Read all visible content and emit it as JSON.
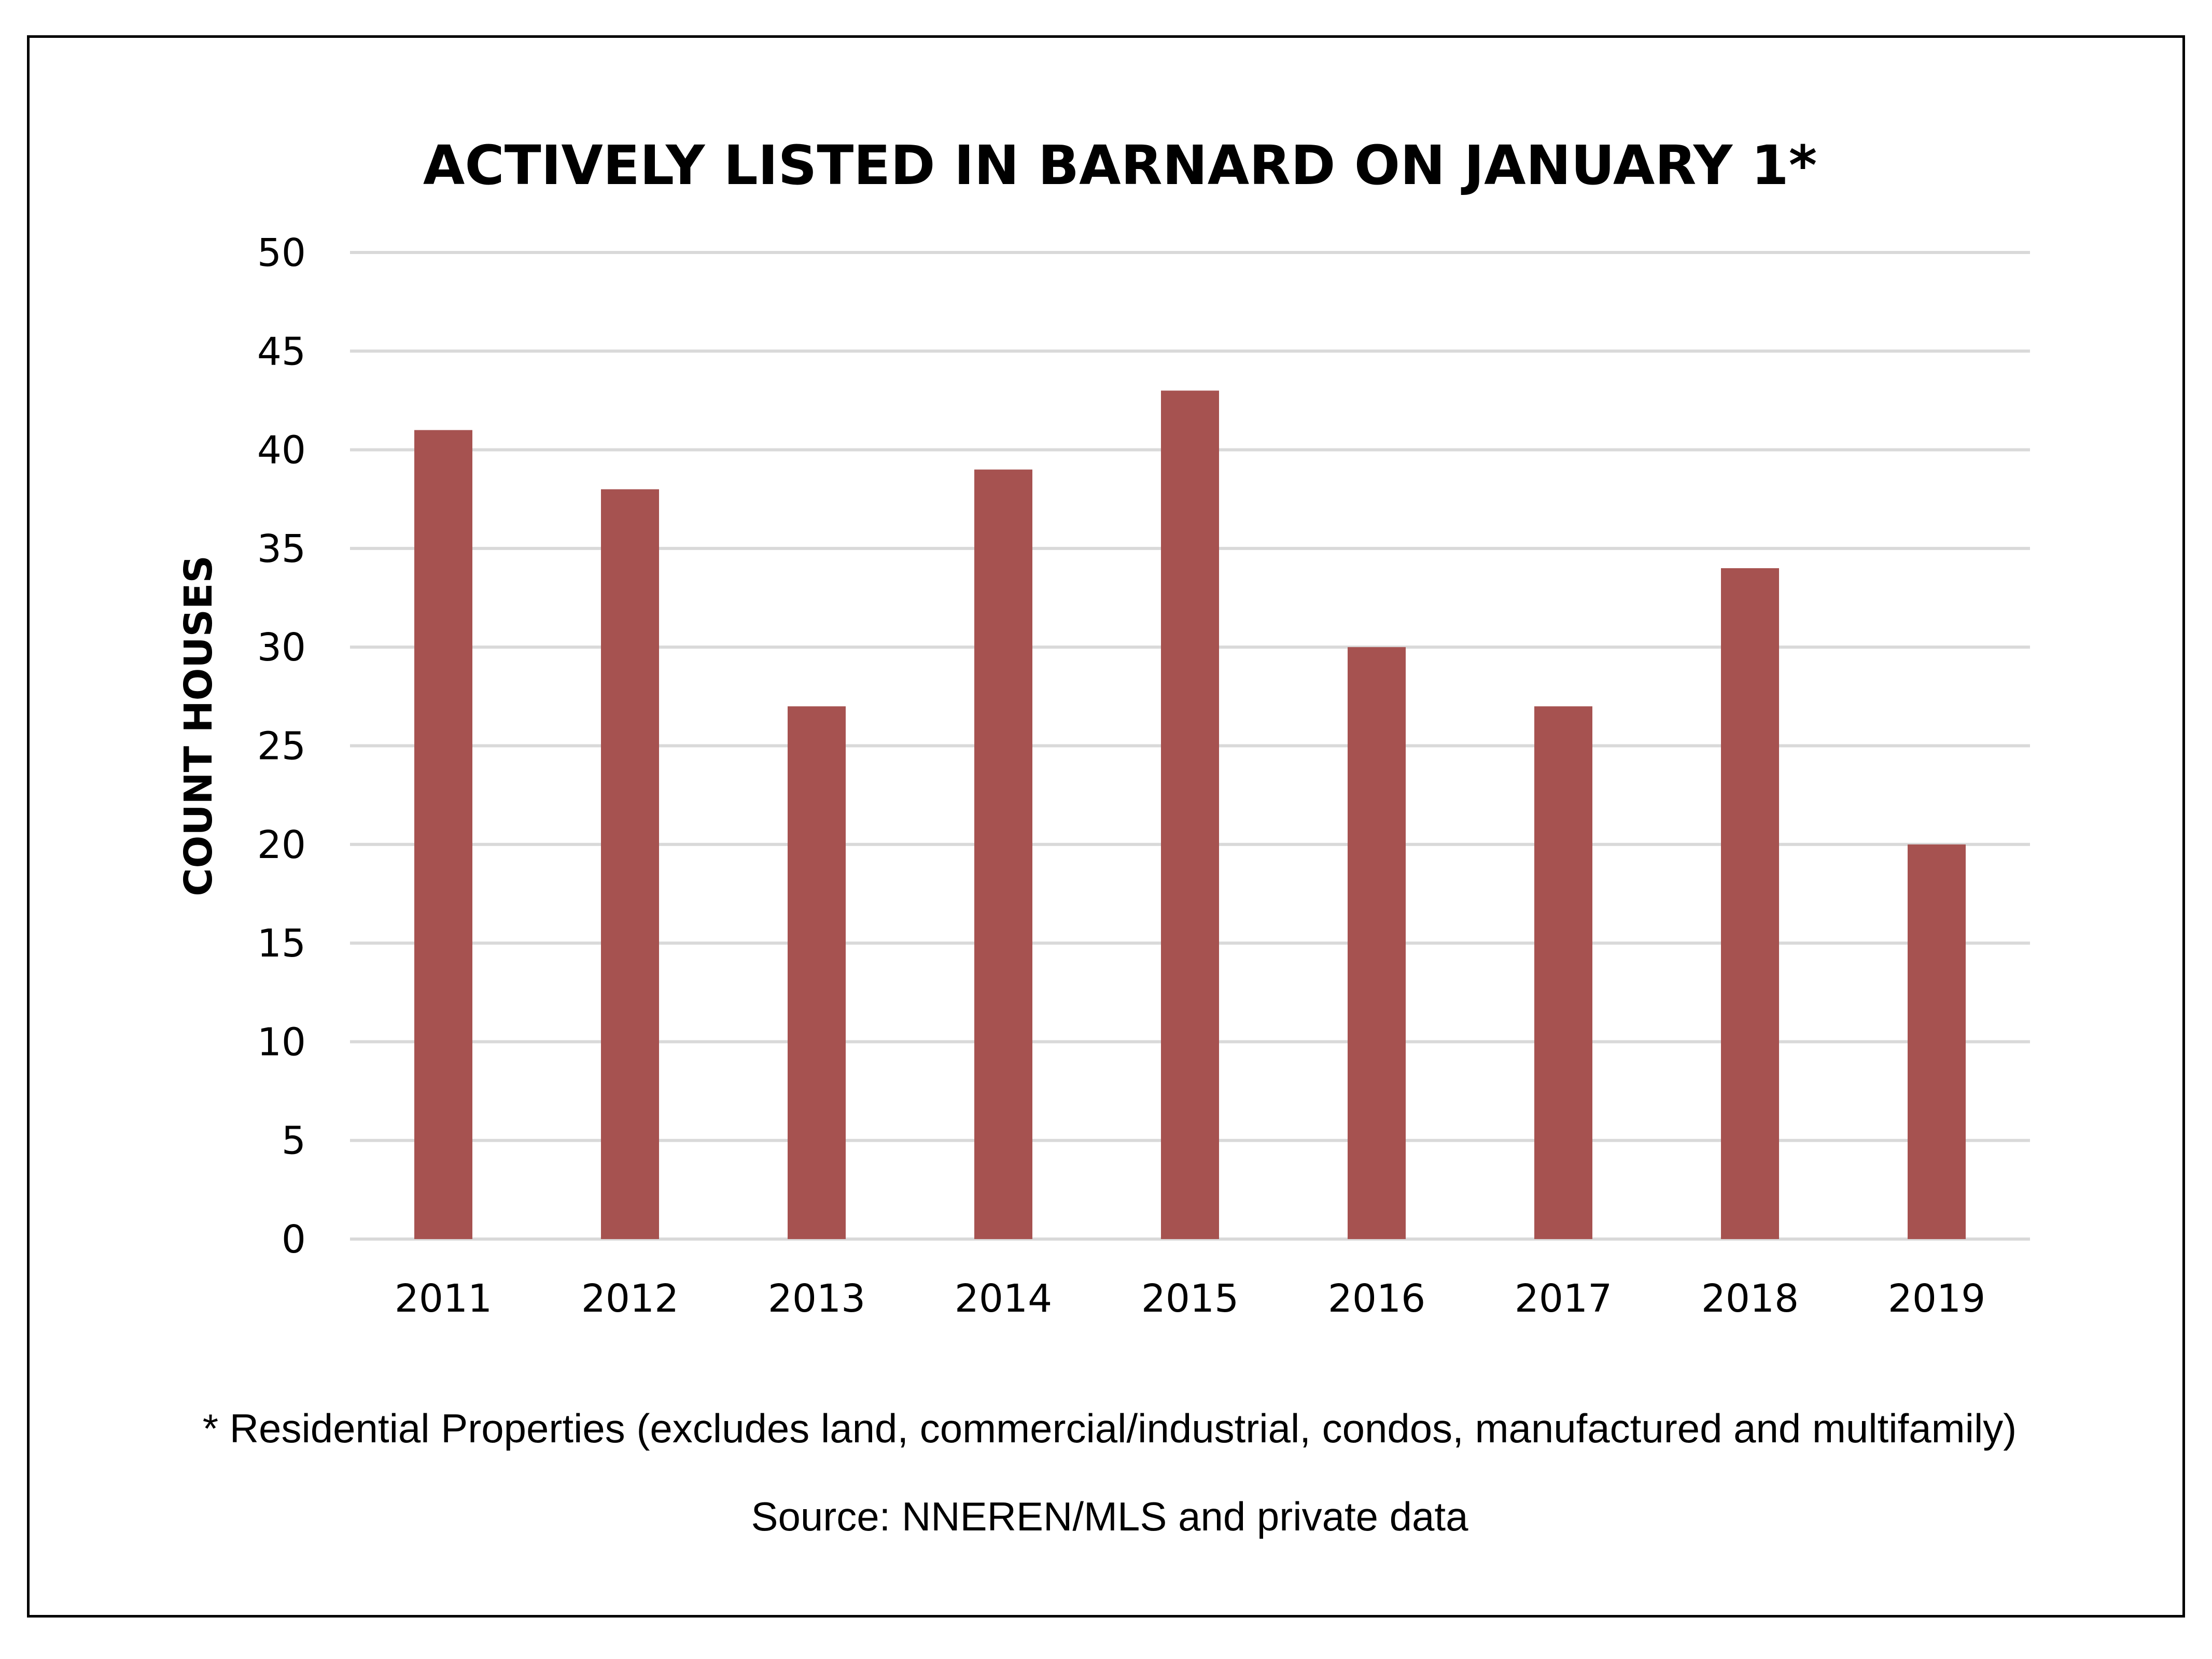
{
  "chart_data": {
    "type": "bar",
    "title": "ACTIVELY LISTED IN BARNARD ON JANUARY 1*",
    "xlabel": "",
    "ylabel": "COUNT HOUSES",
    "categories": [
      "2011",
      "2012",
      "2013",
      "2014",
      "2015",
      "2016",
      "2017",
      "2018",
      "2019"
    ],
    "values": [
      41,
      38,
      27,
      39,
      43,
      30,
      27,
      34,
      20
    ],
    "ylim": [
      0,
      50
    ],
    "yticks": [
      "0",
      "5",
      "10",
      "15",
      "20",
      "25",
      "30",
      "35",
      "40",
      "45",
      "50"
    ],
    "grid": true,
    "legend": "none",
    "bar_color": "#a65250",
    "gridline_color": "#d9d9d9"
  },
  "notes": {
    "footnote": "* Residential Properties (excludes land, commercial/industrial, condos, manufactured and multifamily)",
    "source": "Source: NNEREN/MLS and private data"
  }
}
